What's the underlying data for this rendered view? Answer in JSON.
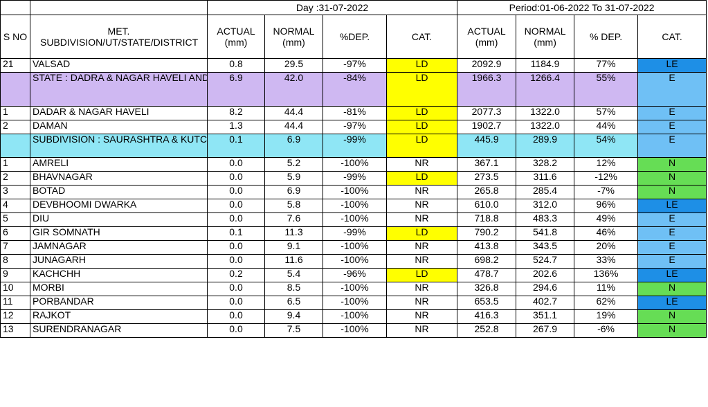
{
  "header": {
    "day_label": "Day :31-07-2022",
    "period_label": "Period:01-06-2022 To 31-07-2022",
    "sno": "S NO",
    "name_col": "MET. SUBDIVISION/UT/STATE/DISTRICT",
    "actual": "ACTUAL (mm)",
    "normal": "NORMAL (mm)",
    "dep_day": "%DEP.",
    "cat": "CAT.",
    "dep_period": "% DEP."
  },
  "rows": [
    {
      "sno": "21",
      "name": "VALSAD",
      "d_act": "0.8",
      "d_norm": "29.5",
      "d_dep": "-97%",
      "d_cat": "LD",
      "p_act": "2092.9",
      "p_norm": "1184.9",
      "p_dep": "77%",
      "p_cat": "LE"
    },
    {
      "sno": "",
      "name": "STATE : DADRA & NAGAR HAVELI AND DAMAN & DIU (UT)",
      "d_act": "6.9",
      "d_norm": "42.0",
      "d_dep": "-84%",
      "d_cat": "LD",
      "p_act": "1966.3",
      "p_norm": "1266.4",
      "p_dep": "55%",
      "p_cat": "E"
    },
    {
      "sno": "1",
      "name": "DADAR & NAGAR HAVELI",
      "d_act": "8.2",
      "d_norm": "44.4",
      "d_dep": "-81%",
      "d_cat": "LD",
      "p_act": "2077.3",
      "p_norm": "1322.0",
      "p_dep": "57%",
      "p_cat": "E"
    },
    {
      "sno": "2",
      "name": "DAMAN",
      "d_act": "1.3",
      "d_norm": "44.4",
      "d_dep": "-97%",
      "d_cat": "LD",
      "p_act": "1902.7",
      "p_norm": "1322.0",
      "p_dep": "44%",
      "p_cat": "E"
    },
    {
      "sno": "",
      "name": "SUBDIVISION : SAURASHTRA & KUTCH",
      "d_act": "0.1",
      "d_norm": "6.9",
      "d_dep": "-99%",
      "d_cat": "LD",
      "p_act": "445.9",
      "p_norm": "289.9",
      "p_dep": "54%",
      "p_cat": "E"
    },
    {
      "sno": "1",
      "name": "AMRELI",
      "d_act": "0.0",
      "d_norm": "5.2",
      "d_dep": "-100%",
      "d_cat": "NR",
      "p_act": "367.1",
      "p_norm": "328.2",
      "p_dep": "12%",
      "p_cat": "N"
    },
    {
      "sno": "2",
      "name": "BHAVNAGAR",
      "d_act": "0.0",
      "d_norm": "5.9",
      "d_dep": "-99%",
      "d_cat": "LD",
      "p_act": "273.5",
      "p_norm": "311.6",
      "p_dep": "-12%",
      "p_cat": "N"
    },
    {
      "sno": "3",
      "name": "BOTAD",
      "d_act": "0.0",
      "d_norm": "6.9",
      "d_dep": "-100%",
      "d_cat": "NR",
      "p_act": "265.8",
      "p_norm": "285.4",
      "p_dep": "-7%",
      "p_cat": "N"
    },
    {
      "sno": "4",
      "name": "DEVBHOOMI DWARKA",
      "d_act": "0.0",
      "d_norm": "5.8",
      "d_dep": "-100%",
      "d_cat": "NR",
      "p_act": "610.0",
      "p_norm": "312.0",
      "p_dep": "96%",
      "p_cat": "LE"
    },
    {
      "sno": "5",
      "name": "DIU",
      "d_act": "0.0",
      "d_norm": "7.6",
      "d_dep": "-100%",
      "d_cat": "NR",
      "p_act": "718.8",
      "p_norm": "483.3",
      "p_dep": "49%",
      "p_cat": "E"
    },
    {
      "sno": "6",
      "name": "GIR SOMNATH",
      "d_act": "0.1",
      "d_norm": "11.3",
      "d_dep": "-99%",
      "d_cat": "LD",
      "p_act": "790.2",
      "p_norm": "541.8",
      "p_dep": "46%",
      "p_cat": "E"
    },
    {
      "sno": "7",
      "name": "JAMNAGAR",
      "d_act": "0.0",
      "d_norm": "9.1",
      "d_dep": "-100%",
      "d_cat": "NR",
      "p_act": "413.8",
      "p_norm": "343.5",
      "p_dep": "20%",
      "p_cat": "E"
    },
    {
      "sno": "8",
      "name": "JUNAGARH",
      "d_act": "0.0",
      "d_norm": "11.6",
      "d_dep": "-100%",
      "d_cat": "NR",
      "p_act": "698.2",
      "p_norm": "524.7",
      "p_dep": "33%",
      "p_cat": "E"
    },
    {
      "sno": "9",
      "name": "KACHCHH",
      "d_act": "0.2",
      "d_norm": "5.4",
      "d_dep": "-96%",
      "d_cat": "LD",
      "p_act": "478.7",
      "p_norm": "202.6",
      "p_dep": "136%",
      "p_cat": "LE"
    },
    {
      "sno": "10",
      "name": "MORBI",
      "d_act": "0.0",
      "d_norm": "8.5",
      "d_dep": "-100%",
      "d_cat": "NR",
      "p_act": "326.8",
      "p_norm": "294.6",
      "p_dep": "11%",
      "p_cat": "N"
    },
    {
      "sno": "11",
      "name": "PORBANDAR",
      "d_act": "0.0",
      "d_norm": "6.5",
      "d_dep": "-100%",
      "d_cat": "NR",
      "p_act": "653.5",
      "p_norm": "402.7",
      "p_dep": "62%",
      "p_cat": "LE"
    },
    {
      "sno": "12",
      "name": "RAJKOT",
      "d_act": "0.0",
      "d_norm": "9.4",
      "d_dep": "-100%",
      "d_cat": "NR",
      "p_act": "416.3",
      "p_norm": "351.1",
      "p_dep": "19%",
      "p_cat": "N"
    },
    {
      "sno": "13",
      "name": "SURENDRANAGAR",
      "d_act": "0.0",
      "d_norm": "7.5",
      "d_dep": "-100%",
      "d_cat": "NR",
      "p_act": "252.8",
      "p_norm": "267.9",
      "p_dep": "-6%",
      "p_cat": "N"
    }
  ],
  "category_colors": {
    "LD": "#ffff00",
    "LE": "#1e8fe6",
    "E": "#6fc0f5",
    "N": "#66dd55",
    "NR": "#ffffff",
    "state_row": "#cfb8f2",
    "subdivision_row": "#8fe6f5"
  }
}
